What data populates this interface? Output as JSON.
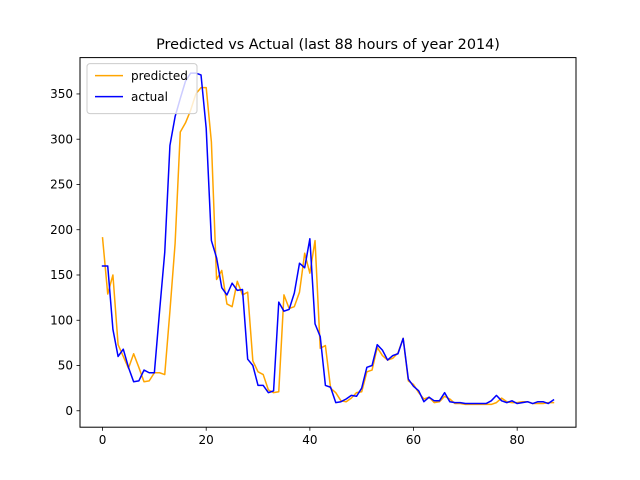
{
  "chart_data": {
    "type": "line",
    "title": "Predicted vs Actual (last 88 hours of year 2014)",
    "xlabel": "",
    "ylabel": "",
    "xlim": [
      -4.35,
      91.35
    ],
    "ylim": [
      -18.15,
      390.15
    ],
    "xticks": [
      0,
      20,
      40,
      60,
      80
    ],
    "yticks": [
      0,
      50,
      100,
      150,
      200,
      250,
      300,
      350
    ],
    "grid": false,
    "legend_position": "upper left",
    "x": [
      0,
      1,
      2,
      3,
      4,
      5,
      6,
      7,
      8,
      9,
      10,
      11,
      12,
      13,
      14,
      15,
      16,
      17,
      18,
      19,
      20,
      21,
      22,
      23,
      24,
      25,
      26,
      27,
      28,
      29,
      30,
      31,
      32,
      33,
      34,
      35,
      36,
      37,
      38,
      39,
      40,
      41,
      42,
      43,
      44,
      45,
      46,
      47,
      48,
      49,
      50,
      51,
      52,
      53,
      54,
      55,
      56,
      57,
      58,
      59,
      60,
      61,
      62,
      63,
      64,
      65,
      66,
      67,
      68,
      69,
      70,
      71,
      72,
      73,
      74,
      75,
      76,
      77,
      78,
      79,
      80,
      81,
      82,
      83,
      84,
      85,
      86,
      87
    ],
    "series": [
      {
        "name": "predicted",
        "color": "#ffa500",
        "values": [
          191,
          129,
          150,
          73,
          60,
          47,
          63,
          48,
          32,
          33,
          42,
          42,
          40,
          110,
          185,
          308,
          318,
          332,
          350,
          357,
          357,
          297,
          145,
          155,
          118,
          115,
          143,
          128,
          131,
          55,
          43,
          40,
          23,
          20,
          21,
          128,
          113,
          115,
          131,
          174,
          152,
          188,
          69,
          72,
          25,
          20,
          11,
          10,
          14,
          20,
          21,
          43,
          45,
          70,
          61,
          56,
          58,
          64,
          80,
          33,
          29,
          20,
          13,
          15,
          9,
          10,
          16,
          13,
          8,
          8,
          7,
          7,
          7,
          7,
          7,
          7,
          9,
          14,
          10,
          9,
          9,
          10,
          10,
          8,
          8,
          8,
          9,
          9
        ]
      },
      {
        "name": "actual",
        "color": "#0000ff",
        "values": [
          160,
          160,
          90,
          60,
          68,
          48,
          32,
          33,
          45,
          42,
          42,
          110,
          175,
          293,
          325,
          345,
          364,
          373,
          373,
          371,
          312,
          188,
          169,
          136,
          128,
          141,
          133,
          134,
          57,
          50,
          28,
          28,
          20,
          22,
          120,
          110,
          112,
          130,
          163,
          158,
          190,
          96,
          82,
          28,
          26,
          9,
          10,
          13,
          17,
          16,
          25,
          48,
          50,
          73,
          67,
          56,
          61,
          63,
          80,
          35,
          27,
          22,
          10,
          15,
          11,
          11,
          20,
          10,
          9,
          9,
          8,
          8,
          8,
          8,
          8,
          11,
          17,
          11,
          9,
          11,
          8,
          9,
          10,
          8,
          10,
          10,
          8,
          12
        ]
      }
    ]
  }
}
